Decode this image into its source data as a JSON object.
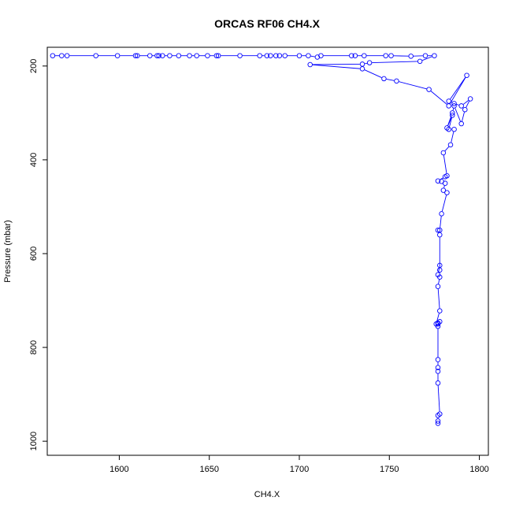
{
  "chart_data": {
    "type": "scatter",
    "title": "ORCAS RF06 CH4.X",
    "xlabel": "CH4.X",
    "ylabel": "Pressure (mbar)",
    "xlim": [
      1560,
      1805
    ],
    "ylim": [
      1030,
      160
    ],
    "y_axis_inverted": true,
    "x_ticks": [
      1600,
      1650,
      1700,
      1750,
      1800
    ],
    "y_ticks": [
      200,
      400,
      600,
      800,
      1000
    ],
    "grid": false,
    "legend": "none",
    "colors": {
      "series": "#0000ff",
      "axis": "#000000",
      "background": "#ffffff"
    },
    "series": [
      {
        "marker": "open-circle",
        "line": true,
        "x": [
          1777,
          1777,
          1777,
          1778,
          1777,
          1777,
          1777,
          1777,
          1777,
          1777,
          1778,
          1777,
          1776,
          1778,
          1777,
          1778,
          1777,
          1778,
          1778,
          1778,
          1777,
          1778,
          1779,
          1782,
          1780,
          1781,
          1779,
          1777,
          1781,
          1782,
          1780,
          1784,
          1786,
          1783,
          1785,
          1782,
          1785,
          1786,
          1790,
          1792,
          1795,
          1790,
          1786,
          1783,
          1793,
          1783,
          1772,
          1754,
          1747,
          1735,
          1706,
          1735,
          1739,
          1767,
          1775,
          1770,
          1762,
          1751,
          1748,
          1736,
          1731,
          1729,
          1712,
          1710,
          1705,
          1700,
          1692,
          1689,
          1687,
          1684,
          1682,
          1678,
          1667,
          1655,
          1654,
          1649,
          1643,
          1639,
          1633,
          1628,
          1624,
          1622,
          1621,
          1617,
          1610,
          1609,
          1599,
          1587,
          1571,
          1568,
          1563
        ],
        "y": [
          962,
          957,
          945,
          942,
          876,
          851,
          843,
          826,
          755,
          748,
          745,
          750,
          750,
          722,
          670,
          650,
          645,
          625,
          635,
          560,
          550,
          550,
          515,
          470,
          465,
          450,
          446,
          445,
          436,
          434,
          385,
          368,
          335,
          335,
          305,
          332,
          300,
          285,
          323,
          293,
          270,
          285,
          280,
          275,
          220,
          285,
          250,
          232,
          227,
          206,
          197,
          196,
          193,
          190,
          178,
          178,
          179,
          178,
          178,
          178,
          178,
          178,
          178,
          181,
          178,
          178,
          178,
          178,
          178,
          178,
          178,
          178,
          178,
          178,
          178,
          178,
          178,
          178,
          178,
          178,
          178,
          178,
          178,
          178,
          178,
          178,
          178,
          178,
          178,
          178,
          178
        ]
      }
    ]
  }
}
